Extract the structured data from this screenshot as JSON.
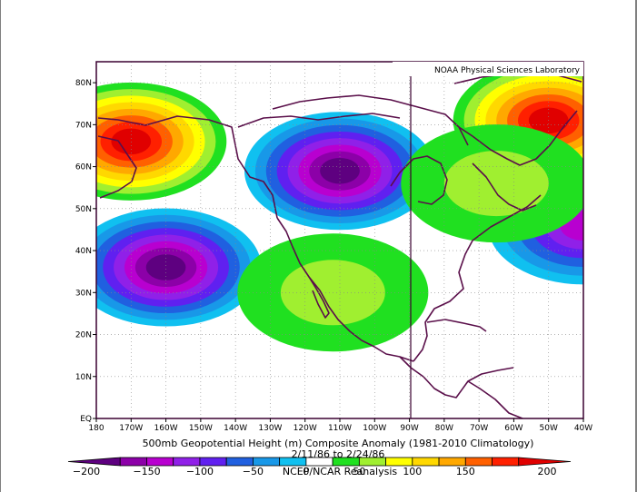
{
  "credit": "NOAA Physical Sciences Laboratory",
  "caption": {
    "title": "500mb Geopotential Height (m) Composite Anomaly (1981-2010 Climatology)",
    "dates": "2/11/86 to 2/24/86",
    "source": "NCEP/NCAR Reanalysis"
  },
  "map": {
    "lon_ticks": [
      "180",
      "170W",
      "160W",
      "150W",
      "140W",
      "130W",
      "120W",
      "110W",
      "100W",
      "90W",
      "80W",
      "70W",
      "60W",
      "50W",
      "40W"
    ],
    "lat_ticks": [
      "EQ",
      "10N",
      "20N",
      "30N",
      "40N",
      "50N",
      "60N",
      "70N",
      "80N"
    ],
    "lon_range": [
      -180,
      -40
    ],
    "lat_range": [
      0,
      85
    ],
    "anomaly_centers": [
      {
        "lon": -160,
        "lat": 36,
        "value": -200
      },
      {
        "lon": -110,
        "lat": 59,
        "value": -200
      },
      {
        "lon": -40,
        "lat": 46,
        "value": -150
      },
      {
        "lon": -170,
        "lat": 66,
        "value": 200
      },
      {
        "lon": -50,
        "lat": 71,
        "value": 200
      },
      {
        "lon": -112,
        "lat": 30,
        "value": 50
      },
      {
        "lon": -65,
        "lat": 56,
        "value": 50
      }
    ]
  },
  "colorbar": {
    "labels": [
      "-200",
      "-150",
      "-100",
      "-50",
      "0",
      "50",
      "100",
      "150",
      "200"
    ],
    "colors": [
      "#5e0080",
      "#8c00a8",
      "#b800d0",
      "#9020e8",
      "#6020f0",
      "#2060e0",
      "#1898e8",
      "#10c0f0",
      "#ffffff",
      "#20e020",
      "#a0ef30",
      "#ffff00",
      "#ffd800",
      "#ffa800",
      "#ff6000",
      "#ff2000",
      "#e00000"
    ]
  }
}
